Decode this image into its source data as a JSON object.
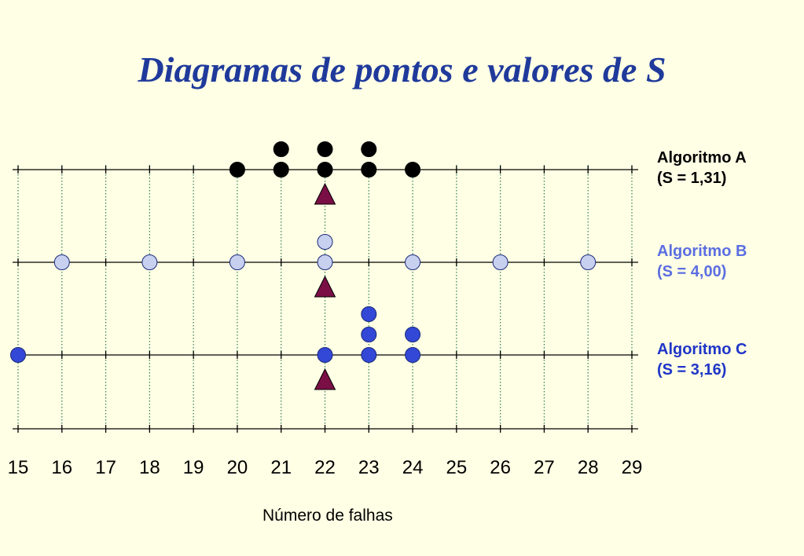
{
  "title": "Diagramas de pontos e valores de S",
  "chart_data": {
    "type": "scatter",
    "subtype": "dot-plot",
    "xlabel": "Número de falhas",
    "xlim": [
      15,
      29
    ],
    "x_ticks": [
      "15",
      "16",
      "17",
      "18",
      "19",
      "20",
      "21",
      "22",
      "23",
      "24",
      "25",
      "26",
      "27",
      "28",
      "29"
    ],
    "grid": "vertical dotted",
    "series": [
      {
        "name": "Algoritmo A",
        "s_label": "(S = 1,31)",
        "values": [
          20,
          21,
          21,
          22,
          22,
          23,
          23,
          24
        ],
        "mean": 22,
        "dot_color": "#000000",
        "label_color": "#000000"
      },
      {
        "name": "Algoritmo B",
        "s_label": "(S = 4,00)",
        "values": [
          16,
          18,
          20,
          22,
          22,
          24,
          26,
          28
        ],
        "mean": 22,
        "dot_color": "#C8D0F0",
        "label_color": "#5B6EE1"
      },
      {
        "name": "Algoritmo C",
        "s_label": "(S = 3,16)",
        "values": [
          15,
          22,
          23,
          23,
          23,
          24,
          24
        ],
        "mean": 22,
        "dot_color": "#3348D6",
        "label_color": "#1F35C8"
      }
    ],
    "mean_marker": "triangle",
    "mean_marker_color": "#7A0F45"
  }
}
